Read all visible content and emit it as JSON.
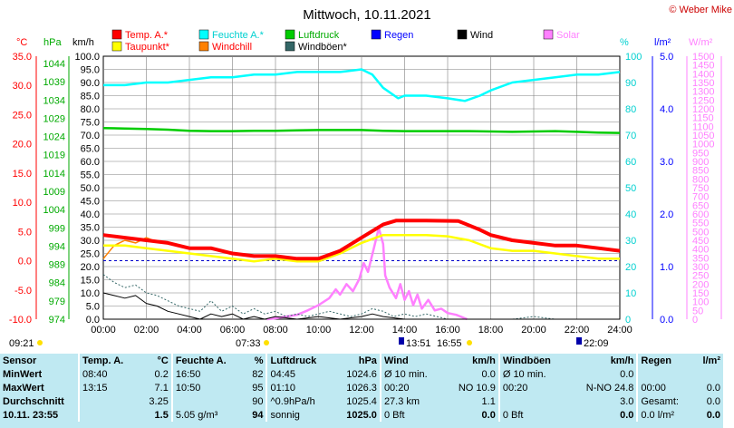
{
  "header": {
    "title": "Mittwoch, 10.11.2021",
    "copyright": "© Weber Mike"
  },
  "colors": {
    "temp": "#ff0000",
    "dew": "#ffff00",
    "hum": "#00ffff",
    "windchill": "#ff8000",
    "pressure": "#00cc00",
    "gust": "#336666",
    "rain": "#0000ff",
    "wind": "#000000",
    "solar": "#ff80ff",
    "table_bg": "#bfe9f2"
  },
  "legend": [
    {
      "label": "Temp. A.*",
      "color": "#ff0000",
      "text_color": "#ff0000"
    },
    {
      "label": "Feuchte A.*",
      "color": "#00ffff",
      "text_color": "#00d0d0"
    },
    {
      "label": "Luftdruck",
      "color": "#00cc00",
      "text_color": "#00aa00"
    },
    {
      "label": "Regen",
      "color": "#0000ff",
      "text_color": "#0000ff"
    },
    {
      "label": "Wind",
      "color": "#000000",
      "text_color": "#000000"
    },
    {
      "label": "Solar",
      "color": "#ff80ff",
      "text_color": "#ff80ff"
    },
    {
      "label": "Taupunkt*",
      "color": "#ffff00",
      "text_color": "#ff0000"
    },
    {
      "label": "Windchill",
      "color": "#ff8000",
      "text_color": "#ff0000"
    },
    {
      "label": "Windböen*",
      "color": "#336666",
      "text_color": "#000000"
    }
  ],
  "axes_labels": {
    "temp_unit": "°C",
    "press_unit": "hPa",
    "wind_unit": "km/h",
    "hum_unit": "%",
    "rain_unit": "l/m²",
    "solar_unit": "W/m²"
  },
  "markers": {
    "start": "09:21",
    "sunrise": "07:33",
    "t1": "13:51",
    "sunset": "16:55",
    "moon": "22:09"
  },
  "chart_data": {
    "type": "line",
    "x_range": [
      "00:00",
      "24:00"
    ],
    "x_ticks": [
      "00:00",
      "02:00",
      "04:00",
      "06:00",
      "08:00",
      "10:00",
      "12:00",
      "14:00",
      "16:00",
      "18:00",
      "20:00",
      "22:00",
      "24:00"
    ],
    "axes": {
      "temp": {
        "unit": "°C",
        "range": [
          -10,
          35
        ],
        "ticks": [
          "35.0",
          "30.0",
          "25.0",
          "20.0",
          "15.0",
          "10.0",
          "5.0",
          "0.0",
          "-5.0",
          "-10.0"
        ]
      },
      "press": {
        "unit": "hPa",
        "range": [
          974,
          1046
        ],
        "ticks": [
          "1044",
          "1039",
          "1034",
          "1029",
          "1024",
          "1019",
          "1014",
          "1009",
          "1004",
          "999",
          "994",
          "989",
          "984",
          "979",
          "974"
        ]
      },
      "wind": {
        "unit": "km/h",
        "range": [
          0,
          100
        ],
        "ticks": [
          "100.0",
          "95.0",
          "90.0",
          "85.0",
          "80.0",
          "75.0",
          "70.0",
          "65.0",
          "60.0",
          "55.0",
          "50.0",
          "45.0",
          "40.0",
          "35.0",
          "30.0",
          "25.0",
          "20.0",
          "15.0",
          "10.0",
          "5.0",
          "0.0"
        ]
      },
      "hum": {
        "unit": "%",
        "range": [
          0,
          100
        ],
        "ticks": [
          "100",
          "90",
          "80",
          "70",
          "60",
          "50",
          "40",
          "30",
          "20",
          "10",
          "0"
        ]
      },
      "rain": {
        "unit": "l/m²",
        "range": [
          0,
          5
        ],
        "ticks": [
          "5.0",
          "4.0",
          "3.0",
          "2.0",
          "1.0",
          "0.0"
        ]
      },
      "solar": {
        "unit": "W/m²",
        "range": [
          0,
          1500
        ],
        "ticks": [
          "1500",
          "1450",
          "1400",
          "1350",
          "1300",
          "1250",
          "1200",
          "1150",
          "1100",
          "1050",
          "1000",
          "950",
          "900",
          "850",
          "800",
          "750",
          "700",
          "650",
          "600",
          "550",
          "500",
          "450",
          "400",
          "350",
          "300",
          "250",
          "200",
          "150",
          "100",
          "50",
          "0"
        ]
      }
    },
    "series": [
      {
        "name": "Temp. A.*",
        "axis": "wind",
        "color": "#ff0000",
        "points": [
          [
            0,
            32
          ],
          [
            1,
            31
          ],
          [
            2,
            30
          ],
          [
            3,
            29
          ],
          [
            4,
            27
          ],
          [
            5,
            27
          ],
          [
            6,
            25
          ],
          [
            7,
            24
          ],
          [
            8,
            24
          ],
          [
            9,
            23
          ],
          [
            10,
            23
          ],
          [
            11,
            26
          ],
          [
            12,
            31
          ],
          [
            13,
            36
          ],
          [
            13.6,
            37.5
          ],
          [
            15,
            37.5
          ],
          [
            16.5,
            37.3
          ],
          [
            17.5,
            34
          ],
          [
            18,
            32
          ],
          [
            19,
            30
          ],
          [
            20,
            29
          ],
          [
            21,
            28
          ],
          [
            22,
            28
          ],
          [
            23,
            27
          ],
          [
            24,
            26
          ]
        ]
      },
      {
        "name": "Taupunkt*",
        "axis": "wind",
        "color": "#ffff00",
        "points": [
          [
            0,
            28
          ],
          [
            1,
            28
          ],
          [
            2,
            27
          ],
          [
            3,
            26
          ],
          [
            4,
            25
          ],
          [
            5,
            24
          ],
          [
            6,
            23
          ],
          [
            7,
            22
          ],
          [
            8,
            23
          ],
          [
            9,
            22
          ],
          [
            10,
            22
          ],
          [
            11,
            25
          ],
          [
            12,
            29
          ],
          [
            13,
            32
          ],
          [
            14,
            32
          ],
          [
            15,
            32
          ],
          [
            16,
            31.5
          ],
          [
            17,
            30
          ],
          [
            18,
            27
          ],
          [
            19,
            26
          ],
          [
            20,
            26
          ],
          [
            21,
            25
          ],
          [
            22,
            24
          ],
          [
            23,
            23
          ],
          [
            24,
            23
          ]
        ]
      },
      {
        "name": "Windchill",
        "axis": "wind",
        "color": "#ff8000",
        "points": [
          [
            0,
            23
          ],
          [
            0.5,
            28
          ],
          [
            1,
            30
          ],
          [
            1.5,
            29
          ],
          [
            2,
            31
          ],
          [
            2.3,
            30
          ],
          [
            3,
            29
          ],
          [
            4,
            27
          ],
          [
            5,
            27
          ],
          [
            6,
            25
          ],
          [
            7,
            24
          ],
          [
            8,
            24
          ],
          [
            9,
            23
          ],
          [
            10,
            23
          ],
          [
            11,
            26
          ],
          [
            12,
            31
          ],
          [
            13,
            36
          ]
        ]
      },
      {
        "name": "Feuchte A.*",
        "axis": "hum",
        "color": "#00ffff",
        "points": [
          [
            0,
            89
          ],
          [
            1,
            89
          ],
          [
            2,
            90
          ],
          [
            3,
            90
          ],
          [
            4,
            91
          ],
          [
            5,
            92
          ],
          [
            6,
            92
          ],
          [
            7,
            93
          ],
          [
            8,
            93
          ],
          [
            9,
            94
          ],
          [
            10,
            94
          ],
          [
            11,
            94
          ],
          [
            12,
            95
          ],
          [
            12.5,
            93
          ],
          [
            13,
            88
          ],
          [
            13.7,
            84
          ],
          [
            14,
            85
          ],
          [
            15,
            85
          ],
          [
            16,
            84
          ],
          [
            16.8,
            83
          ],
          [
            17.5,
            85
          ],
          [
            18,
            87
          ],
          [
            19,
            90
          ],
          [
            20,
            91
          ],
          [
            21,
            92
          ],
          [
            22,
            93
          ],
          [
            23,
            93
          ],
          [
            24,
            94
          ]
        ]
      },
      {
        "name": "Luftdruck",
        "axis": "press",
        "color": "#00cc00",
        "points": [
          [
            0,
            1026.3
          ],
          [
            1,
            1026.2
          ],
          [
            2,
            1026.1
          ],
          [
            3,
            1025.9
          ],
          [
            4,
            1025.6
          ],
          [
            5,
            1025.5
          ],
          [
            6,
            1025.5
          ],
          [
            7,
            1025.6
          ],
          [
            8,
            1025.6
          ],
          [
            9,
            1025.7
          ],
          [
            10,
            1025.8
          ],
          [
            11,
            1025.8
          ],
          [
            12,
            1025.8
          ],
          [
            13,
            1025.6
          ],
          [
            14,
            1025.5
          ],
          [
            15,
            1025.5
          ],
          [
            16,
            1025.5
          ],
          [
            17,
            1025.5
          ],
          [
            18,
            1025.4
          ],
          [
            19,
            1025.3
          ],
          [
            20,
            1025.4
          ],
          [
            21,
            1025.5
          ],
          [
            22,
            1025.3
          ],
          [
            23,
            1025.1
          ],
          [
            24,
            1025.0
          ]
        ]
      },
      {
        "name": "Windböen*",
        "axis": "wind",
        "color": "#336666",
        "points": [
          [
            0,
            17
          ],
          [
            0.5,
            14
          ],
          [
            1,
            12
          ],
          [
            1.5,
            13
          ],
          [
            2,
            10
          ],
          [
            2.5,
            9
          ],
          [
            3,
            7
          ],
          [
            3.5,
            5
          ],
          [
            4,
            4
          ],
          [
            4.5,
            3
          ],
          [
            5,
            7
          ],
          [
            5.5,
            3
          ],
          [
            6,
            5
          ],
          [
            6.5,
            2
          ],
          [
            7,
            4
          ],
          [
            7.5,
            2
          ],
          [
            8,
            3
          ],
          [
            8.5,
            1
          ],
          [
            9,
            2
          ],
          [
            9.5,
            1
          ],
          [
            10,
            2
          ],
          [
            10.5,
            3
          ],
          [
            11,
            2
          ],
          [
            11.5,
            1
          ],
          [
            12,
            2
          ],
          [
            12.5,
            4
          ],
          [
            13,
            3
          ],
          [
            13.5,
            1
          ],
          [
            14,
            2
          ],
          [
            14.5,
            1
          ],
          [
            15,
            2
          ],
          [
            15.5,
            1
          ],
          [
            16,
            0
          ],
          [
            18,
            0
          ],
          [
            19,
            0
          ],
          [
            20,
            1
          ],
          [
            21,
            0
          ],
          [
            22,
            0
          ],
          [
            23,
            0
          ],
          [
            24,
            0
          ]
        ]
      },
      {
        "name": "Wind",
        "axis": "wind",
        "color": "#000000",
        "points": [
          [
            0,
            10
          ],
          [
            0.5,
            9
          ],
          [
            1,
            8
          ],
          [
            1.5,
            9
          ],
          [
            2,
            6
          ],
          [
            2.5,
            5
          ],
          [
            3,
            3
          ],
          [
            3.5,
            2
          ],
          [
            4,
            1
          ],
          [
            4.5,
            0
          ],
          [
            5,
            2
          ],
          [
            5.5,
            1
          ],
          [
            6,
            2
          ],
          [
            6.5,
            0
          ],
          [
            7,
            1
          ],
          [
            7.5,
            0
          ],
          [
            8,
            1
          ],
          [
            9,
            0
          ],
          [
            10,
            1
          ],
          [
            11,
            0
          ],
          [
            12,
            1
          ],
          [
            12.5,
            2
          ],
          [
            13,
            1
          ],
          [
            14,
            0
          ],
          [
            24,
            0
          ]
        ]
      },
      {
        "name": "Solar",
        "axis": "solar",
        "color": "#ff80ff",
        "points": [
          [
            7.6,
            0
          ],
          [
            8,
            5
          ],
          [
            8.5,
            15
          ],
          [
            9,
            25
          ],
          [
            9.5,
            50
          ],
          [
            10,
            80
          ],
          [
            10.5,
            120
          ],
          [
            10.8,
            170
          ],
          [
            11,
            140
          ],
          [
            11.3,
            200
          ],
          [
            11.6,
            160
          ],
          [
            11.9,
            230
          ],
          [
            12.1,
            320
          ],
          [
            12.3,
            270
          ],
          [
            12.6,
            420
          ],
          [
            12.8,
            520
          ],
          [
            13,
            430
          ],
          [
            13.1,
            250
          ],
          [
            13.3,
            180
          ],
          [
            13.6,
            120
          ],
          [
            13.8,
            200
          ],
          [
            14,
            110
          ],
          [
            14.2,
            160
          ],
          [
            14.4,
            80
          ],
          [
            14.6,
            140
          ],
          [
            14.8,
            60
          ],
          [
            15.1,
            110
          ],
          [
            15.4,
            50
          ],
          [
            15.7,
            60
          ],
          [
            16,
            35
          ],
          [
            16.4,
            25
          ],
          [
            16.9,
            0
          ]
        ]
      }
    ]
  },
  "table": {
    "header": [
      "Sensor",
      "Temp. A.",
      "°C",
      "Feuchte A.",
      "%",
      "Luftdruck",
      "hPa",
      "Wind",
      "km/h",
      "Windböen",
      "km/h",
      "Regen",
      "l/m²"
    ],
    "rows": [
      [
        "MinWert",
        "08:40",
        "0.2",
        "16:50",
        "82",
        "04:45",
        "1024.6",
        "Ø 10 min.",
        "0.0",
        "Ø 10 min.",
        "0.0",
        "",
        ""
      ],
      [
        "MaxWert",
        "13:15",
        "7.1",
        "10:50",
        "95",
        "01:10",
        "1026.3",
        "00:20",
        "NO 10.9",
        "00:20",
        "N-NO 24.8",
        "00:00",
        "0.0"
      ],
      [
        "Durchschnitt",
        "",
        "3.25",
        "",
        "90",
        "^0.9hPa/h",
        "1025.4",
        "27.3 km",
        "1.1",
        "",
        "3.0",
        "Gesamt:",
        "0.0"
      ],
      [
        "10.11. 23:55",
        "",
        "1.5",
        "5.05 g/m³",
        "94",
        "sonnig",
        "1025.0",
        "0 Bft",
        "0.0",
        "0 Bft",
        "0.0",
        "0.0 l/m²",
        "0.0"
      ]
    ]
  }
}
